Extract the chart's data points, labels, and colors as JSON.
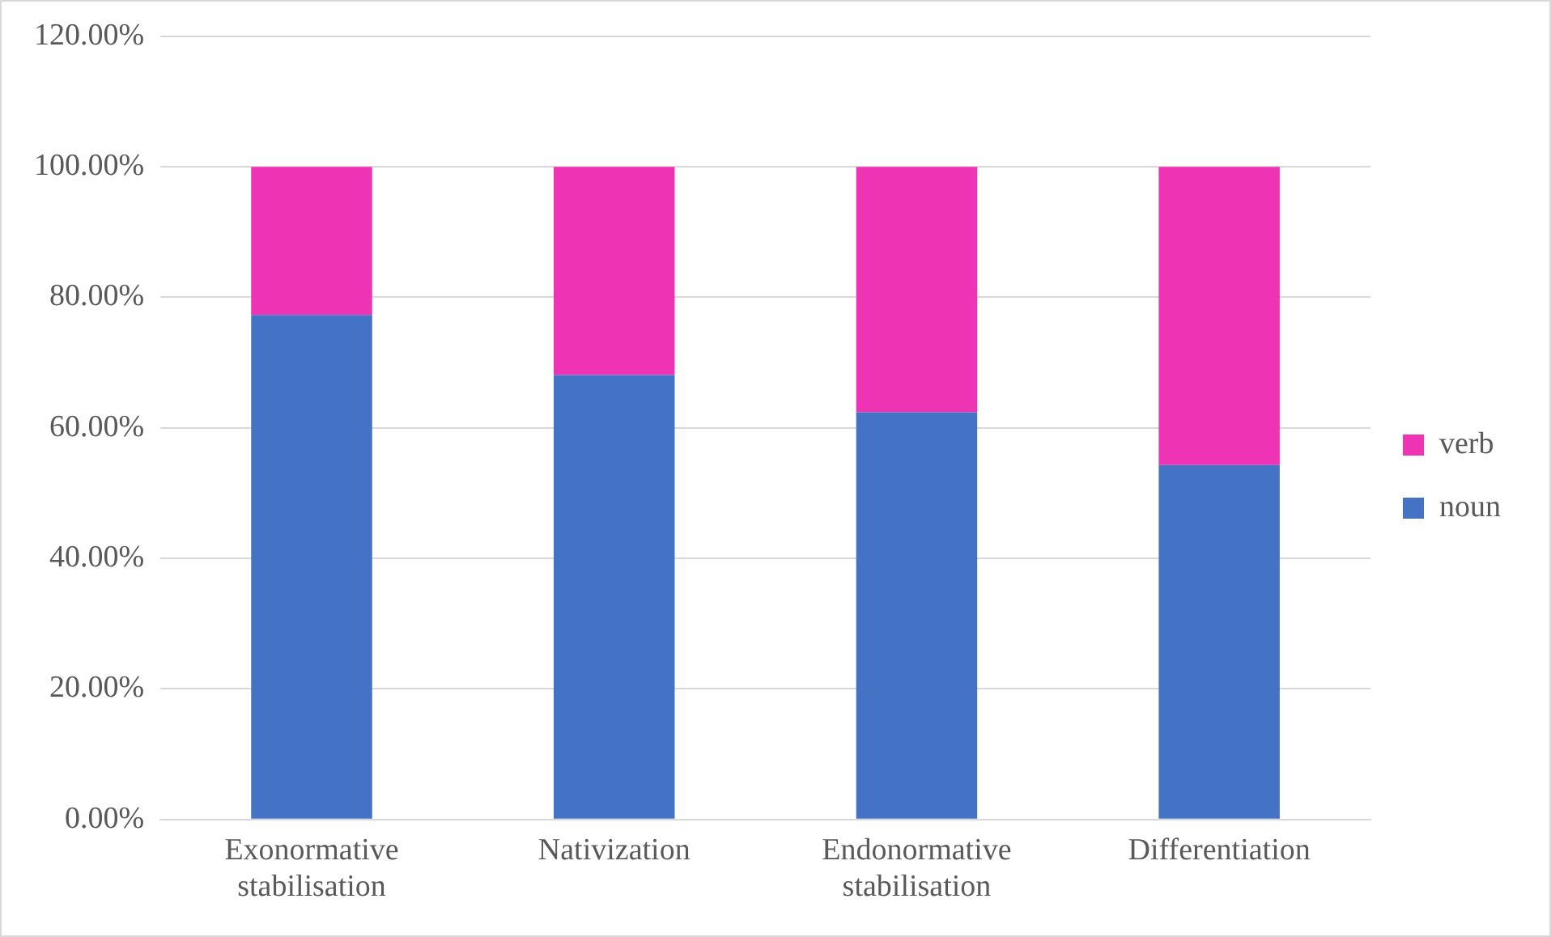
{
  "chart_data": {
    "type": "bar",
    "stacked": true,
    "categories": [
      "Exonormative stabilisation",
      "Nativization",
      "Endonormative stabilisation",
      "Differentiation"
    ],
    "series": [
      {
        "name": "noun",
        "color": "#4472c4",
        "values": [
          77.3,
          68.1,
          62.4,
          54.3
        ]
      },
      {
        "name": "verb",
        "color": "#ee33b4",
        "values": [
          22.7,
          31.9,
          37.6,
          45.7
        ]
      }
    ],
    "ylim": [
      0,
      120
    ],
    "yticks": [
      {
        "value": 0,
        "label": "0.00%"
      },
      {
        "value": 20,
        "label": "20.00%"
      },
      {
        "value": 40,
        "label": "40.00%"
      },
      {
        "value": 60,
        "label": "60.00%"
      },
      {
        "value": 80,
        "label": "80.00%"
      },
      {
        "value": 100,
        "label": "100.00%"
      },
      {
        "value": 120,
        "label": "120.00%"
      }
    ],
    "grid": "y",
    "legend": "right"
  }
}
